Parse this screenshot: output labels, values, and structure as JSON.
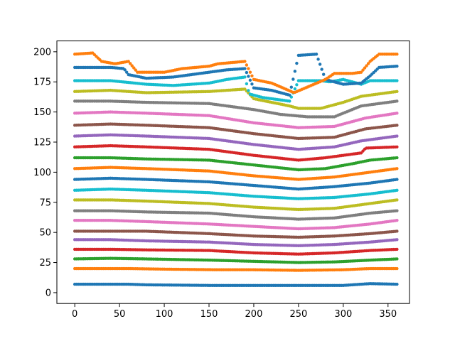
{
  "chart_data": {
    "type": "scatter",
    "title": "",
    "xlabel": "",
    "ylabel": "",
    "xlim": [
      -20,
      374
    ],
    "ylim": [
      -9,
      209
    ],
    "xticks": [
      0,
      50,
      100,
      150,
      200,
      250,
      300,
      350
    ],
    "yticks": [
      0,
      25,
      50,
      75,
      100,
      125,
      150,
      175,
      200
    ],
    "grid": false,
    "legend": "none",
    "series": [
      {
        "color": "#1f77b4",
        "points": [
          [
            0,
            7
          ],
          [
            60,
            7
          ],
          [
            80,
            6.5
          ],
          [
            150,
            6
          ],
          [
            200,
            6
          ],
          [
            260,
            6
          ],
          [
            300,
            6
          ],
          [
            330,
            7.5
          ],
          [
            360,
            7
          ]
        ]
      },
      {
        "color": "#ff7f0e",
        "points": [
          [
            0,
            20
          ],
          [
            60,
            20
          ],
          [
            100,
            19.5
          ],
          [
            160,
            19
          ],
          [
            200,
            19
          ],
          [
            250,
            18.5
          ],
          [
            300,
            19
          ],
          [
            330,
            20
          ],
          [
            360,
            20
          ]
        ]
      },
      {
        "color": "#2ca02c",
        "points": [
          [
            0,
            28
          ],
          [
            40,
            28.5
          ],
          [
            80,
            28
          ],
          [
            150,
            27
          ],
          [
            200,
            26
          ],
          [
            250,
            25
          ],
          [
            290,
            25.5
          ],
          [
            330,
            27
          ],
          [
            360,
            28
          ]
        ]
      },
      {
        "color": "#d62728",
        "points": [
          [
            0,
            36
          ],
          [
            40,
            36
          ],
          [
            80,
            35.5
          ],
          [
            150,
            35
          ],
          [
            200,
            33
          ],
          [
            250,
            32
          ],
          [
            290,
            33
          ],
          [
            330,
            35
          ],
          [
            360,
            36
          ]
        ]
      },
      {
        "color": "#9467bd",
        "points": [
          [
            0,
            44
          ],
          [
            40,
            44
          ],
          [
            80,
            43
          ],
          [
            150,
            42
          ],
          [
            200,
            40
          ],
          [
            250,
            39
          ],
          [
            290,
            40
          ],
          [
            330,
            42
          ],
          [
            360,
            44
          ]
        ]
      },
      {
        "color": "#8c564b",
        "points": [
          [
            0,
            51
          ],
          [
            40,
            51
          ],
          [
            80,
            51
          ],
          [
            150,
            49
          ],
          [
            200,
            47
          ],
          [
            250,
            46
          ],
          [
            290,
            47
          ],
          [
            330,
            49
          ],
          [
            360,
            51
          ]
        ]
      },
      {
        "color": "#e377c2",
        "points": [
          [
            0,
            60
          ],
          [
            40,
            60
          ],
          [
            80,
            59
          ],
          [
            150,
            57
          ],
          [
            200,
            55
          ],
          [
            250,
            53
          ],
          [
            290,
            54
          ],
          [
            330,
            57
          ],
          [
            360,
            60
          ]
        ]
      },
      {
        "color": "#7f7f7f",
        "points": [
          [
            0,
            68
          ],
          [
            40,
            68
          ],
          [
            80,
            67
          ],
          [
            150,
            66
          ],
          [
            200,
            63
          ],
          [
            250,
            61
          ],
          [
            290,
            62
          ],
          [
            330,
            66
          ],
          [
            360,
            68
          ]
        ]
      },
      {
        "color": "#bcbd22",
        "points": [
          [
            0,
            77
          ],
          [
            40,
            77
          ],
          [
            80,
            76
          ],
          [
            150,
            74
          ],
          [
            200,
            71
          ],
          [
            250,
            69
          ],
          [
            290,
            70
          ],
          [
            330,
            74
          ],
          [
            360,
            77
          ]
        ]
      },
      {
        "color": "#17becf",
        "points": [
          [
            0,
            85
          ],
          [
            40,
            86
          ],
          [
            80,
            85
          ],
          [
            150,
            83
          ],
          [
            200,
            80
          ],
          [
            250,
            78
          ],
          [
            290,
            79
          ],
          [
            330,
            82
          ],
          [
            360,
            85
          ]
        ]
      },
      {
        "color": "#1f77b4",
        "points": [
          [
            0,
            94
          ],
          [
            40,
            95
          ],
          [
            80,
            94
          ],
          [
            150,
            92
          ],
          [
            200,
            89
          ],
          [
            250,
            86
          ],
          [
            290,
            88
          ],
          [
            330,
            91
          ],
          [
            360,
            94
          ]
        ]
      },
      {
        "color": "#ff7f0e",
        "points": [
          [
            0,
            103
          ],
          [
            40,
            104
          ],
          [
            80,
            103
          ],
          [
            150,
            101
          ],
          [
            200,
            97
          ],
          [
            250,
            94
          ],
          [
            290,
            96
          ],
          [
            330,
            100
          ],
          [
            360,
            103
          ]
        ]
      },
      {
        "color": "#2ca02c",
        "points": [
          [
            0,
            112
          ],
          [
            40,
            112
          ],
          [
            80,
            111
          ],
          [
            150,
            110
          ],
          [
            200,
            106
          ],
          [
            250,
            102
          ],
          [
            280,
            103
          ],
          [
            310,
            107
          ],
          [
            330,
            110
          ],
          [
            360,
            112
          ]
        ]
      },
      {
        "color": "#d62728",
        "points": [
          [
            0,
            121
          ],
          [
            40,
            122
          ],
          [
            80,
            121
          ],
          [
            150,
            119
          ],
          [
            200,
            114
          ],
          [
            250,
            110
          ],
          [
            280,
            112
          ],
          [
            310,
            115
          ],
          [
            320,
            116
          ],
          [
            325,
            120
          ],
          [
            360,
            121
          ]
        ]
      },
      {
        "color": "#9467bd",
        "points": [
          [
            0,
            130
          ],
          [
            40,
            131
          ],
          [
            80,
            130
          ],
          [
            150,
            128
          ],
          [
            200,
            123
          ],
          [
            250,
            119
          ],
          [
            290,
            121
          ],
          [
            320,
            126
          ],
          [
            360,
            130
          ]
        ]
      },
      {
        "color": "#8c564b",
        "points": [
          [
            0,
            139
          ],
          [
            40,
            140
          ],
          [
            80,
            139
          ],
          [
            150,
            137
          ],
          [
            200,
            132
          ],
          [
            250,
            128
          ],
          [
            290,
            129
          ],
          [
            325,
            136
          ],
          [
            360,
            139
          ]
        ]
      },
      {
        "color": "#e377c2",
        "points": [
          [
            0,
            149
          ],
          [
            40,
            150
          ],
          [
            80,
            149
          ],
          [
            150,
            147
          ],
          [
            200,
            141
          ],
          [
            250,
            137
          ],
          [
            290,
            138
          ],
          [
            325,
            145
          ],
          [
            360,
            149
          ]
        ]
      },
      {
        "color": "#7f7f7f",
        "points": [
          [
            0,
            159
          ],
          [
            40,
            159
          ],
          [
            80,
            158
          ],
          [
            150,
            157
          ],
          [
            200,
            152
          ],
          [
            230,
            148
          ],
          [
            260,
            146
          ],
          [
            290,
            146
          ],
          [
            300,
            149
          ],
          [
            320,
            155
          ],
          [
            360,
            159
          ]
        ]
      },
      {
        "color": "#bcbd22",
        "points": [
          [
            0,
            167
          ],
          [
            40,
            168
          ],
          [
            80,
            166
          ],
          [
            150,
            167
          ],
          [
            190,
            169
          ],
          [
            200,
            161
          ],
          [
            220,
            158
          ],
          [
            240,
            155
          ],
          [
            250,
            153
          ],
          [
            275,
            153
          ],
          [
            300,
            158
          ],
          [
            320,
            163
          ],
          [
            360,
            167
          ]
        ]
      },
      {
        "color": "#17becf",
        "points": [
          [
            0,
            176
          ],
          [
            40,
            176
          ],
          [
            80,
            173
          ],
          [
            110,
            172
          ],
          [
            150,
            174
          ],
          [
            170,
            177
          ],
          [
            190,
            179
          ],
          [
            195,
            165
          ],
          [
            210,
            162
          ],
          [
            240,
            159
          ],
          [
            250,
            176
          ],
          [
            275,
            176
          ],
          [
            285,
            175
          ],
          [
            300,
            177
          ],
          [
            320,
            173
          ],
          [
            330,
            176
          ],
          [
            360,
            176
          ]
        ]
      },
      {
        "color": "#1f77b4",
        "points": [
          [
            0,
            187
          ],
          [
            40,
            187
          ],
          [
            55,
            186
          ],
          [
            60,
            181
          ],
          [
            80,
            178
          ],
          [
            110,
            179
          ],
          [
            150,
            183
          ],
          [
            170,
            185
          ],
          [
            190,
            186
          ],
          [
            200,
            170
          ],
          [
            220,
            168
          ],
          [
            240,
            164
          ],
          [
            250,
            197
          ],
          [
            270,
            198
          ],
          [
            280,
            177
          ],
          [
            300,
            173
          ],
          [
            320,
            174
          ],
          [
            330,
            180
          ],
          [
            340,
            187
          ],
          [
            360,
            188
          ]
        ]
      },
      {
        "color": "#ff7f0e",
        "points": [
          [
            0,
            198
          ],
          [
            20,
            199
          ],
          [
            30,
            192
          ],
          [
            45,
            190
          ],
          [
            60,
            192
          ],
          [
            70,
            183
          ],
          [
            100,
            183
          ],
          [
            120,
            186
          ],
          [
            150,
            188
          ],
          [
            160,
            190
          ],
          [
            190,
            192
          ],
          [
            200,
            177
          ],
          [
            220,
            174
          ],
          [
            245,
            166
          ],
          [
            280,
            177
          ],
          [
            290,
            182
          ],
          [
            310,
            182
          ],
          [
            320,
            183
          ],
          [
            330,
            192
          ],
          [
            340,
            198
          ],
          [
            360,
            198
          ]
        ]
      }
    ]
  }
}
